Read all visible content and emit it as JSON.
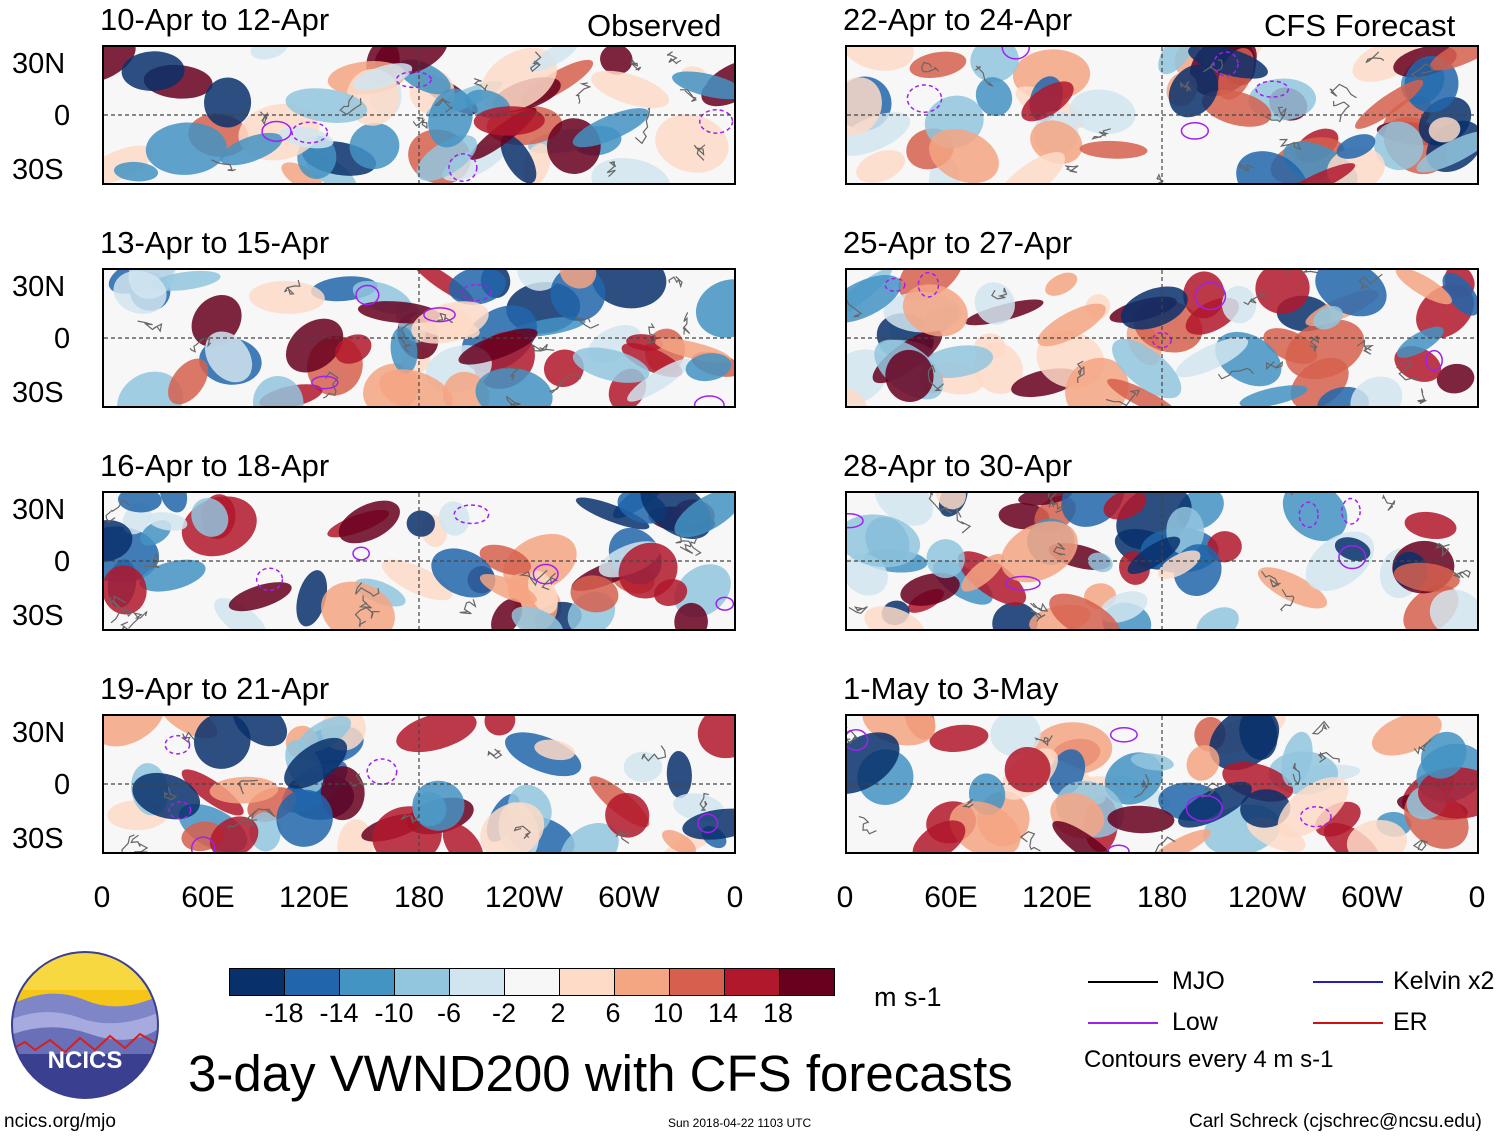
{
  "panel_labels": {
    "left_top": "Observed",
    "right_top": "CFS Forecast"
  },
  "panels": [
    {
      "col": "left",
      "row": 0,
      "title": "10-Apr to 12-Apr"
    },
    {
      "col": "left",
      "row": 1,
      "title": "13-Apr to 15-Apr"
    },
    {
      "col": "left",
      "row": 2,
      "title": "16-Apr to 18-Apr"
    },
    {
      "col": "left",
      "row": 3,
      "title": "19-Apr to 21-Apr"
    },
    {
      "col": "right",
      "row": 0,
      "title": "22-Apr to 24-Apr"
    },
    {
      "col": "right",
      "row": 1,
      "title": "25-Apr to 27-Apr"
    },
    {
      "col": "right",
      "row": 2,
      "title": "28-Apr to 30-Apr"
    },
    {
      "col": "right",
      "row": 3,
      "title": "1-May to 3-May"
    }
  ],
  "y_ticks": [
    "30N",
    "0",
    "30S"
  ],
  "x_ticks": [
    "0",
    "60E",
    "120E",
    "180",
    "120W",
    "60W",
    "0"
  ],
  "colorbar": {
    "labels": [
      "-18",
      "-14",
      "-10",
      "-6",
      "-2",
      "2",
      "6",
      "10",
      "14",
      "18"
    ],
    "colors": [
      "#08306b",
      "#2166ac",
      "#4393c3",
      "#92c5de",
      "#d1e5f0",
      "#f7f7f7",
      "#fddbc7",
      "#f4a582",
      "#d6604d",
      "#b2182b",
      "#67001f"
    ],
    "units": "m s-1"
  },
  "legend": {
    "items": [
      {
        "label": "MJO",
        "color": "#000000"
      },
      {
        "label": "Kelvin x2",
        "color": "#1f1fbf"
      },
      {
        "label": "Low",
        "color": "#a020f0"
      },
      {
        "label": "ER",
        "color": "#d01010"
      }
    ],
    "note": "Contours every 4 m s-1"
  },
  "logo": {
    "text": "NCICS"
  },
  "main_title": "3-day VWND200 with CFS forecasts",
  "footer": {
    "left": "ncics.org/mjo",
    "center": "Sun 2018-04-22 1103 UTC",
    "right": "Carl Schreck (cjschrec@ncsu.edu)"
  }
}
